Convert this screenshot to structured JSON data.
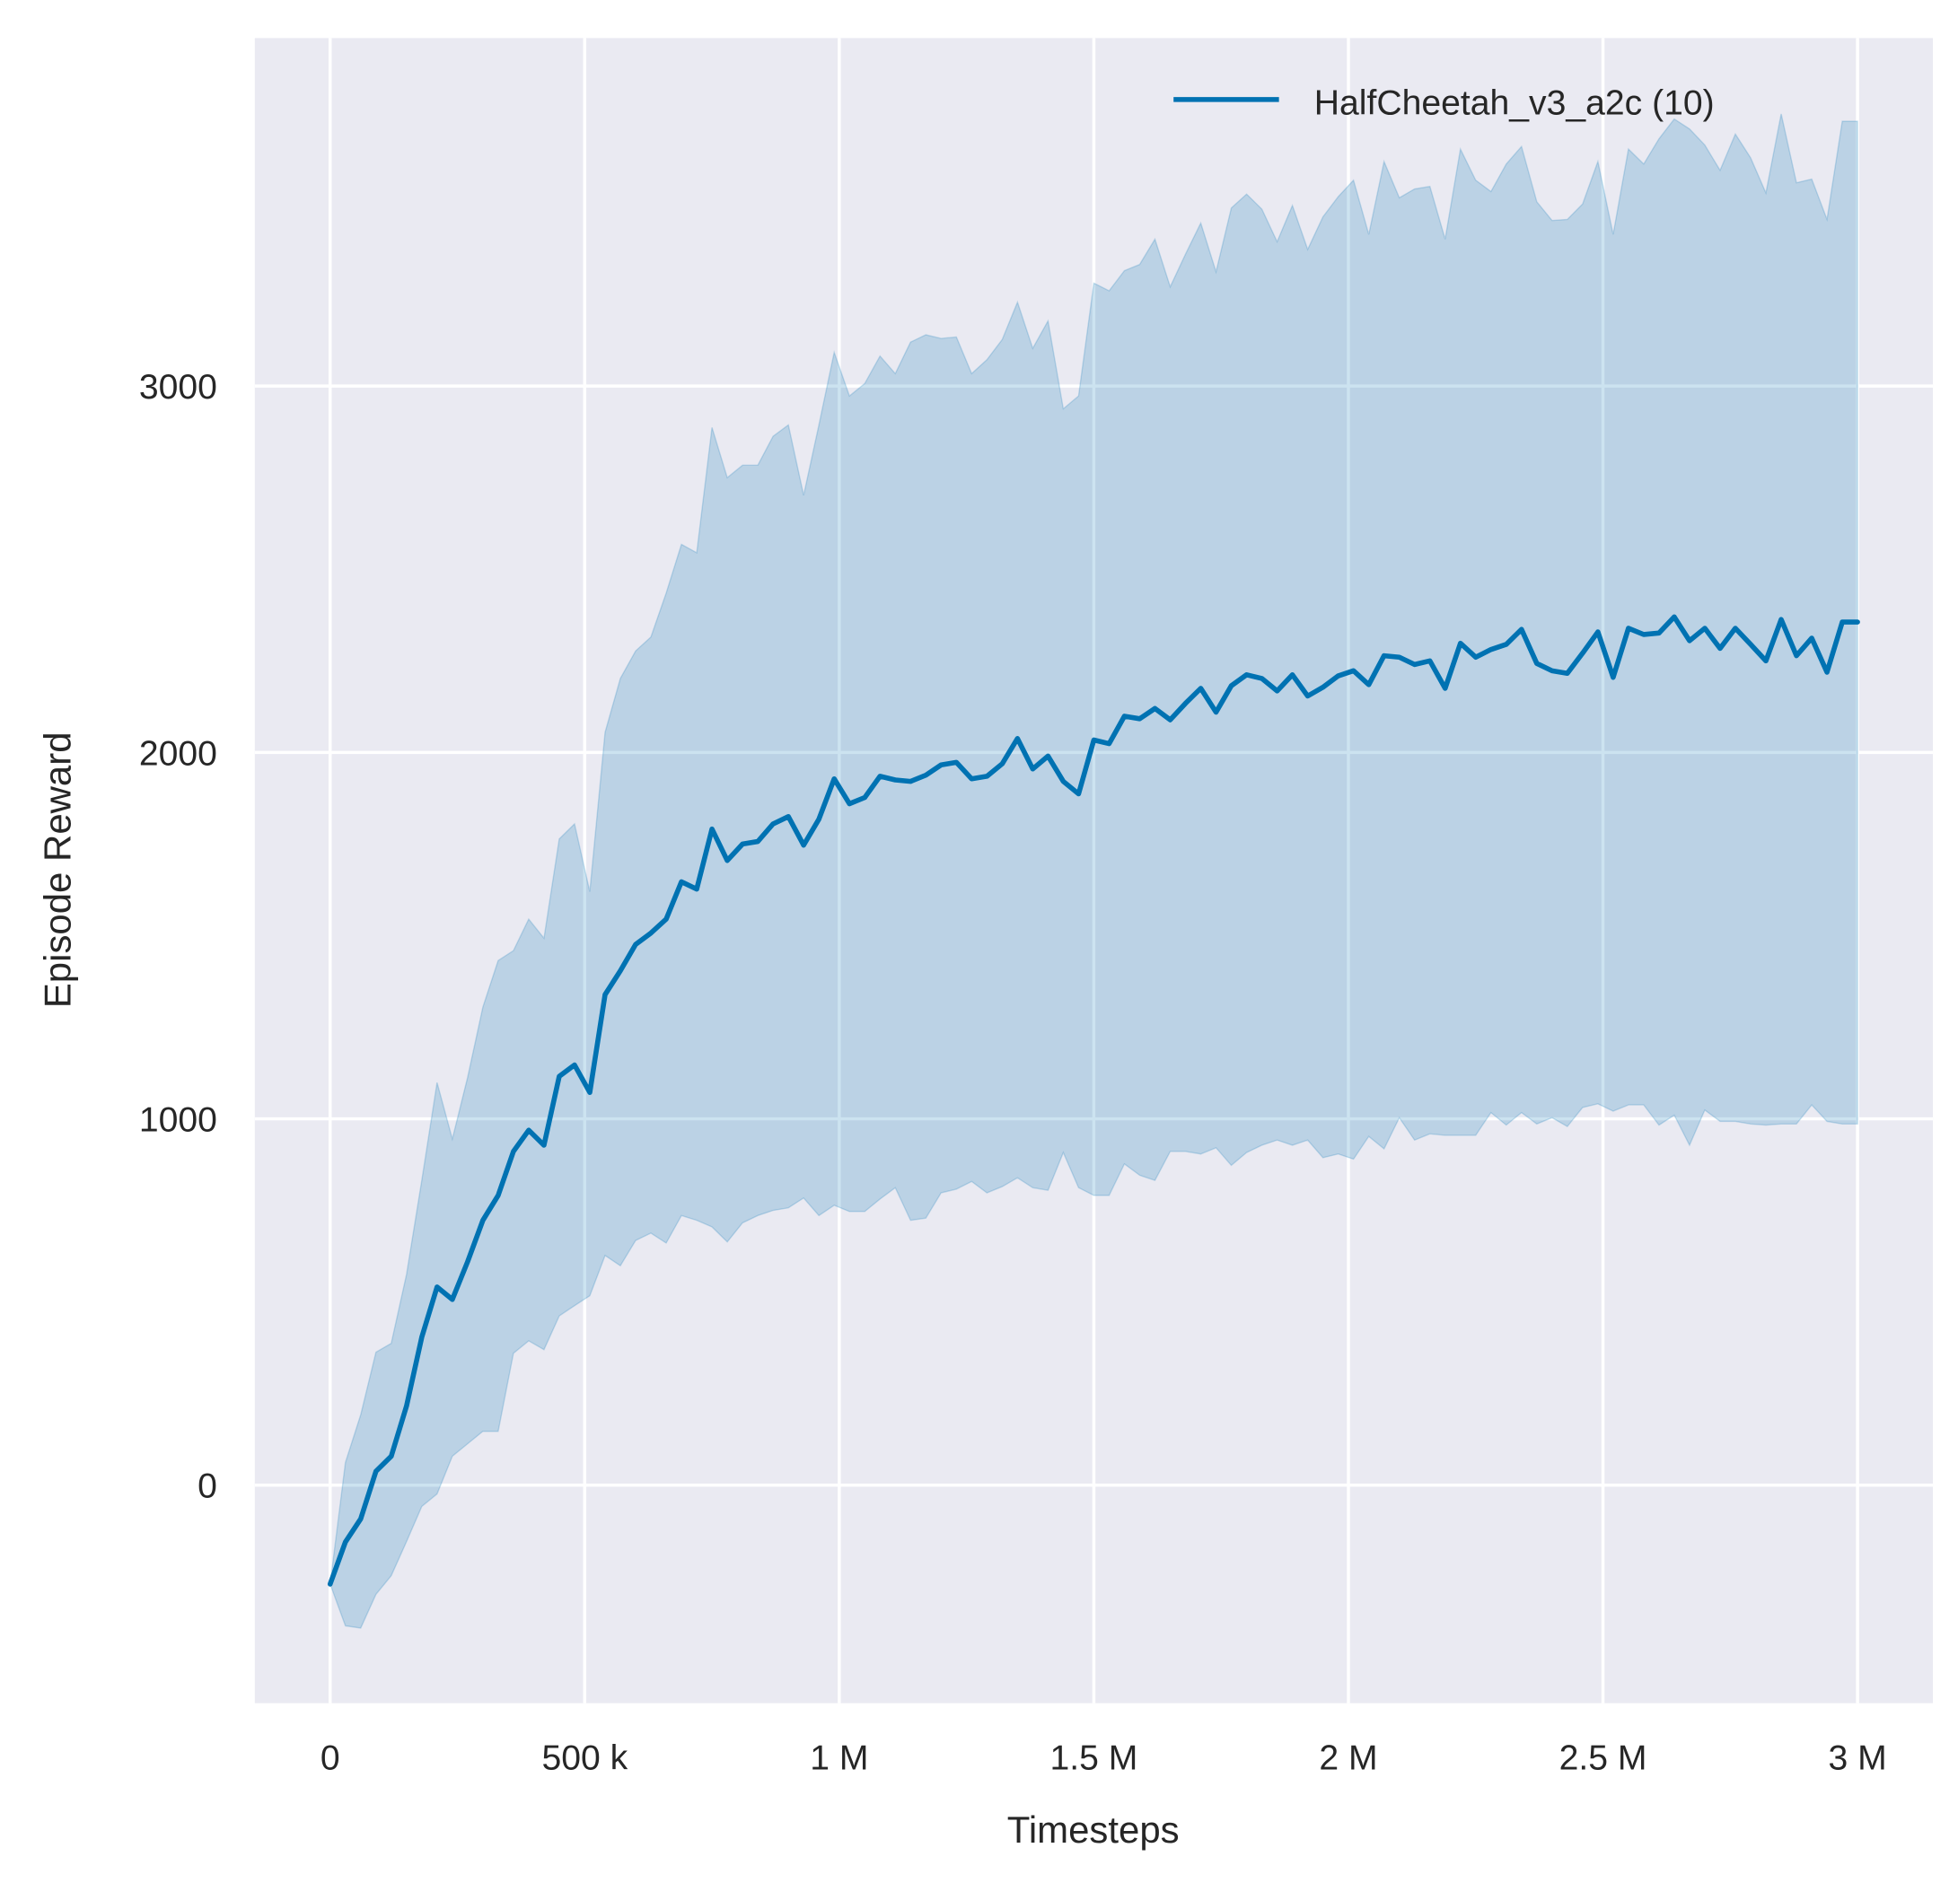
{
  "chart_data": {
    "type": "line",
    "title": "",
    "xlabel": "Timesteps",
    "ylabel": "Episode Reward",
    "xlim": [
      -148000,
      3148000
    ],
    "ylim": [
      -595,
      3950
    ],
    "grid": true,
    "legend_position": "top-right",
    "x_ticks": [
      0,
      500000,
      1000000,
      1500000,
      2000000,
      2500000,
      3000000
    ],
    "x_tick_labels": [
      "0",
      "500 k",
      "1 M",
      "1.5 M",
      "2 M",
      "2.5 M",
      "3 M"
    ],
    "y_ticks": [
      0,
      1000,
      2000,
      3000
    ],
    "y_tick_labels": [
      "0",
      "1000",
      "2000",
      "3000"
    ],
    "colors": {
      "line": "#0072b2",
      "band": "#0072b2",
      "background": "#eaeaf2",
      "grid": "#ffffff"
    },
    "series": [
      {
        "name": "HalfCheetah_v3_a2c (10)",
        "x": [
          0,
          30000,
          60000,
          90000,
          120000,
          150000,
          180000,
          210000,
          240000,
          270000,
          300000,
          330000,
          360000,
          390000,
          420000,
          450000,
          480000,
          510000,
          540000,
          570000,
          600000,
          630000,
          660000,
          690000,
          720000,
          750000,
          780000,
          810000,
          840000,
          870000,
          900000,
          930000,
          960000,
          990000,
          1020000,
          1050000,
          1080000,
          1110000,
          1140000,
          1170000,
          1200000,
          1230000,
          1260000,
          1290000,
          1320000,
          1350000,
          1380000,
          1410000,
          1440000,
          1470000,
          1500000,
          1530000,
          1560000,
          1590000,
          1620000,
          1650000,
          1680000,
          1710000,
          1740000,
          1770000,
          1800000,
          1830000,
          1860000,
          1890000,
          1920000,
          1950000,
          1980000,
          2010000,
          2040000,
          2070000,
          2100000,
          2130000,
          2160000,
          2190000,
          2220000,
          2250000,
          2280000,
          2310000,
          2340000,
          2370000,
          2400000,
          2430000,
          2460000,
          2490000,
          2520000,
          2550000,
          2580000,
          2610000,
          2640000,
          2670000,
          2700000,
          2730000,
          2760000,
          2790000,
          2820000,
          2850000,
          2880000,
          2910000,
          2940000,
          2970000,
          3000000
        ],
        "mean": [
          -270,
          -155,
          -92,
          38,
          79,
          216,
          404,
          541,
          507,
          610,
          723,
          791,
          911,
          969,
          928,
          1116,
          1147,
          1072,
          1339,
          1404,
          1476,
          1507,
          1545,
          1647,
          1627,
          1791,
          1705,
          1750,
          1757,
          1805,
          1825,
          1747,
          1818,
          1928,
          1860,
          1877,
          1935,
          1925,
          1921,
          1938,
          1966,
          1973,
          1928,
          1935,
          1969,
          2038,
          1955,
          1990,
          1921,
          1887,
          2034,
          2024,
          2099,
          2092,
          2120,
          2089,
          2134,
          2175,
          2110,
          2182,
          2212,
          2202,
          2168,
          2212,
          2154,
          2178,
          2209,
          2223,
          2185,
          2264,
          2260,
          2240,
          2250,
          2175,
          2298,
          2260,
          2281,
          2295,
          2336,
          2243,
          2223,
          2216,
          2271,
          2329,
          2205,
          2339,
          2322,
          2326,
          2370,
          2305,
          2339,
          2284,
          2339,
          2295,
          2250,
          2363,
          2264,
          2312,
          2219,
          2356,
          2356
        ],
        "upper": [
          -270,
          62,
          192,
          363,
          387,
          575,
          832,
          1099,
          945,
          1113,
          1305,
          1432,
          1459,
          1545,
          1493,
          1764,
          1805,
          1620,
          2055,
          2202,
          2277,
          2315,
          2435,
          2568,
          2545,
          2887,
          2750,
          2784,
          2784,
          2863,
          2894,
          2702,
          2894,
          3092,
          2973,
          3007,
          3082,
          3034,
          3120,
          3140,
          3130,
          3134,
          3034,
          3072,
          3127,
          3229,
          3103,
          3178,
          2938,
          2973,
          3281,
          3260,
          3315,
          3332,
          3401,
          3271,
          3360,
          3445,
          3312,
          3486,
          3524,
          3483,
          3394,
          3493,
          3373,
          3462,
          3517,
          3562,
          3414,
          3613,
          3514,
          3538,
          3545,
          3401,
          3647,
          3562,
          3531,
          3606,
          3654,
          3503,
          3452,
          3455,
          3497,
          3613,
          3414,
          3647,
          3606,
          3675,
          3729,
          3702,
          3658,
          3589,
          3688,
          3623,
          3527,
          3743,
          3555,
          3565,
          3455,
          3723,
          3723
        ],
        "lower": [
          -270,
          -384,
          -390,
          -298,
          -247,
          -154,
          -58,
          -24,
          79,
          113,
          147,
          147,
          360,
          394,
          370,
          462,
          490,
          517,
          627,
          599,
          668,
          688,
          661,
          736,
          723,
          705,
          664,
          716,
          736,
          750,
          757,
          784,
          736,
          764,
          747,
          747,
          781,
          812,
          723,
          729,
          798,
          808,
          829,
          798,
          815,
          839,
          812,
          805,
          908,
          812,
          791,
          791,
          877,
          846,
          832,
          911,
          911,
          904,
          921,
          873,
          908,
          928,
          942,
          928,
          942,
          894,
          904,
          890,
          952,
          918,
          1003,
          942,
          959,
          955,
          955,
          955,
          1017,
          983,
          1017,
          986,
          1003,
          979,
          1031,
          1041,
          1021,
          1038,
          1038,
          983,
          1010,
          928,
          1024,
          993,
          993,
          986,
          983,
          986,
          986,
          1038,
          993,
          986,
          986
        ]
      }
    ]
  }
}
